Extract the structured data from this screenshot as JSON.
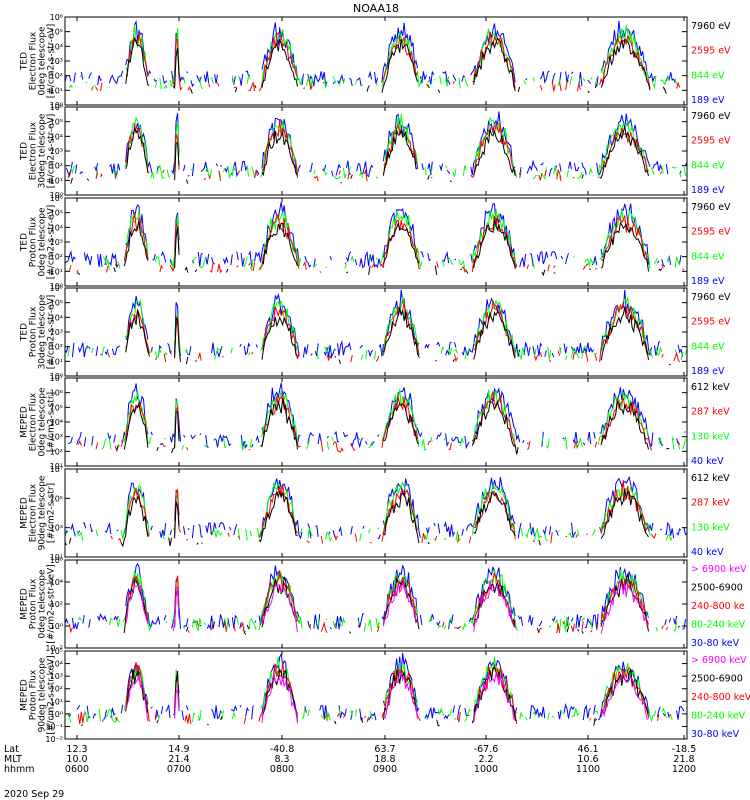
{
  "chart_data": {
    "type": "line",
    "title": "NOAA18",
    "date": "2020 Sep 29",
    "colors": {
      "blue": "#0000ff",
      "green": "#00ff00",
      "red": "#ff0000",
      "black": "#000000",
      "magenta": "#ff00ff"
    },
    "time_axis": {
      "row_labels": [
        "Lat",
        "MLT",
        "hhmm"
      ],
      "lat": [
        "12.3",
        "14.9",
        "-40.8",
        "63.7",
        "-67.6",
        "46.1",
        "-18.5"
      ],
      "mlt": [
        "10.0",
        "21.4",
        "8.3",
        "18.8",
        "2.2",
        "10.6",
        "21.8"
      ],
      "hhmm": [
        "0600",
        "0700",
        "0800",
        "0900",
        "1000",
        "1100",
        "1200"
      ]
    },
    "panels": [
      {
        "id": "ted-e-0",
        "ylabel": [
          "TED",
          "Electron Flux",
          "0deg telescope",
          "[#/cm2-s-str-eV]"
        ],
        "ylim_exp": [
          0,
          6
        ],
        "yticks": [
          0,
          1,
          2,
          3,
          4,
          5,
          6
        ],
        "series": [
          {
            "name": "7960 eV",
            "color": "black"
          },
          {
            "name": "2595 eV",
            "color": "red"
          },
          {
            "name": "844 eV",
            "color": "green"
          },
          {
            "name": "189 eV",
            "color": "blue"
          }
        ]
      },
      {
        "id": "ted-e-30",
        "ylabel": [
          "TED",
          "Electron Flux",
          "30deg telescope",
          "[#/cm2-s-str-eV]"
        ],
        "ylim_exp": [
          0,
          6
        ],
        "yticks": [
          0,
          1,
          2,
          3,
          4,
          5,
          6
        ],
        "series": [
          {
            "name": "7960 eV",
            "color": "black"
          },
          {
            "name": "2595 eV",
            "color": "red"
          },
          {
            "name": "844 eV",
            "color": "green"
          },
          {
            "name": "189 eV",
            "color": "blue"
          }
        ]
      },
      {
        "id": "ted-p-0",
        "ylabel": [
          "TED",
          "Proton Flux",
          "0deg telescope",
          "[#/cm2-s-str-eV]"
        ],
        "ylim_exp": [
          0,
          6
        ],
        "yticks": [
          0,
          1,
          2,
          3,
          4,
          5,
          6
        ],
        "series": [
          {
            "name": "7960 eV",
            "color": "black"
          },
          {
            "name": "2595 eV",
            "color": "red"
          },
          {
            "name": "844 eV",
            "color": "green"
          },
          {
            "name": "189 eV",
            "color": "blue"
          }
        ]
      },
      {
        "id": "ted-p-30",
        "ylabel": [
          "TED",
          "Proton Flux",
          "30deg telescope",
          "[#/cm2-s-str-eV]"
        ],
        "ylim_exp": [
          0,
          6
        ],
        "yticks": [
          0,
          1,
          2,
          3,
          4,
          5,
          6
        ],
        "series": [
          {
            "name": "7960 eV",
            "color": "black"
          },
          {
            "name": "2595 eV",
            "color": "red"
          },
          {
            "name": "844 eV",
            "color": "green"
          },
          {
            "name": "189 eV",
            "color": "blue"
          }
        ]
      },
      {
        "id": "meped-e-0",
        "ylabel": [
          "MEPED",
          "Electron Flux",
          "0deg telescope",
          "[#/cm2-s-str]"
        ],
        "ylim_exp": [
          1,
          7
        ],
        "yticks": [
          1,
          2,
          3,
          4,
          5,
          6,
          7
        ],
        "series": [
          {
            "name": "612 keV",
            "color": "black"
          },
          {
            "name": "287 keV",
            "color": "red"
          },
          {
            "name": "130 keV",
            "color": "green"
          },
          {
            "name": "40 keV",
            "color": "blue"
          }
        ]
      },
      {
        "id": "meped-e-90",
        "ylabel": [
          "MEPED",
          "Electron Flux",
          "90deg telescope",
          "[#/cm2-s-str]"
        ],
        "ylim_exp": [
          1,
          7
        ],
        "yticks": [
          1,
          3,
          5,
          7
        ],
        "series": [
          {
            "name": "612 keV",
            "color": "black"
          },
          {
            "name": "287 keV",
            "color": "red"
          },
          {
            "name": "130 keV",
            "color": "green"
          },
          {
            "name": "40 keV",
            "color": "blue"
          }
        ]
      },
      {
        "id": "meped-p-0",
        "ylabel": [
          "MEPED",
          "Proton Flux",
          "0deg telescope",
          "[#/cm2-s-str-keV]"
        ],
        "ylim_exp": [
          -2,
          6
        ],
        "yticks": [
          -2,
          0,
          2,
          4,
          6
        ],
        "series": [
          {
            "name": "> 6900 keV",
            "color": "magenta"
          },
          {
            "name": "2500-6900",
            "color": "black"
          },
          {
            "name": "240-800 ke",
            "color": "red"
          },
          {
            "name": "80-240 keV",
            "color": "green"
          },
          {
            "name": "30-80 keV",
            "color": "blue"
          }
        ]
      },
      {
        "id": "meped-p-90",
        "ylabel": [
          "MEPED",
          "Proton Flux",
          "90deg telescope",
          "[#/cm2-s-str-keV]"
        ],
        "ylim_exp": [
          -2,
          5
        ],
        "yticks": [
          -2,
          -1,
          0,
          1,
          2,
          3,
          4,
          5
        ],
        "series": [
          {
            "name": "> 6900 keV",
            "color": "magenta"
          },
          {
            "name": "2500-6900",
            "color": "black"
          },
          {
            "name": "240-800 keV",
            "color": "red"
          },
          {
            "name": "80-240 keV",
            "color": "green"
          },
          {
            "name": "30-80 keV",
            "color": "blue"
          }
        ]
      }
    ]
  }
}
